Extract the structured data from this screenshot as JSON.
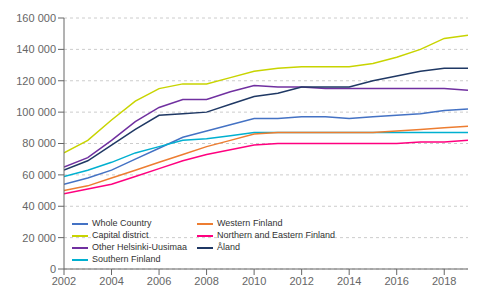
{
  "chart_data": {
    "type": "line",
    "x": [
      2002,
      2003,
      2004,
      2005,
      2006,
      2007,
      2008,
      2009,
      2010,
      2011,
      2012,
      2013,
      2014,
      2015,
      2016,
      2017,
      2018,
      2019
    ],
    "series": [
      {
        "name": "Whole Country",
        "color": "#4472C4",
        "values": [
          54000,
          58000,
          63000,
          70000,
          77000,
          84000,
          88000,
          92000,
          96000,
          96000,
          97000,
          97000,
          96000,
          97000,
          98000,
          99000,
          101000,
          102000
        ]
      },
      {
        "name": "Capital district",
        "color": "#C8D400",
        "values": [
          74000,
          82000,
          95000,
          107000,
          115000,
          118000,
          118000,
          122000,
          126000,
          128000,
          129000,
          129000,
          129000,
          131000,
          135000,
          140000,
          147000,
          149000
        ]
      },
      {
        "name": "Other Helsinki-Uusimaa",
        "color": "#7030A0",
        "values": [
          65000,
          71000,
          82000,
          94000,
          103000,
          108000,
          108000,
          113000,
          117000,
          116000,
          116000,
          115000,
          115000,
          115000,
          115000,
          115000,
          115000,
          114000
        ]
      },
      {
        "name": "Southern Finland",
        "color": "#00B0D0",
        "values": [
          59000,
          63000,
          68000,
          74000,
          78000,
          82000,
          83000,
          85000,
          87000,
          87000,
          87000,
          87000,
          87000,
          87000,
          87000,
          87000,
          87000,
          87000
        ]
      },
      {
        "name": "Western Finland",
        "color": "#ED7D31",
        "values": [
          50000,
          53000,
          58000,
          63000,
          68000,
          73000,
          78000,
          82000,
          86000,
          87000,
          87000,
          87000,
          87000,
          87000,
          88000,
          89000,
          90000,
          91000
        ]
      },
      {
        "name": "Northern and Eastern Finland",
        "color": "#FF007F",
        "values": [
          48000,
          51000,
          54000,
          59000,
          64000,
          69000,
          73000,
          76000,
          79000,
          80000,
          80000,
          80000,
          80000,
          80000,
          80000,
          81000,
          81000,
          82000
        ]
      },
      {
        "name": "Åland",
        "color": "#1F3864",
        "values": [
          63000,
          69000,
          79000,
          89000,
          98000,
          99000,
          100000,
          105000,
          110000,
          112000,
          116000,
          116000,
          116000,
          120000,
          123000,
          126000,
          128000,
          128000
        ]
      }
    ],
    "xlim": [
      2002,
      2019
    ],
    "xticks": [
      2002,
      2004,
      2006,
      2008,
      2010,
      2012,
      2014,
      2016,
      2018
    ],
    "ylim": [
      0,
      160000
    ],
    "yticks": [
      0,
      {
        "value": 20000,
        "label": "20 000"
      },
      {
        "value": 40000,
        "label": "40 000"
      },
      {
        "value": 60000,
        "label": "60 000"
      },
      {
        "value": 80000,
        "label": "80 000"
      },
      {
        "value": 100000,
        "label": "100 000"
      },
      {
        "value": 120000,
        "label": "120 000"
      },
      {
        "value": 140000,
        "label": "140 000"
      },
      {
        "value": 160000,
        "label": "160 000"
      }
    ],
    "grid": true,
    "legend": "lower left"
  }
}
